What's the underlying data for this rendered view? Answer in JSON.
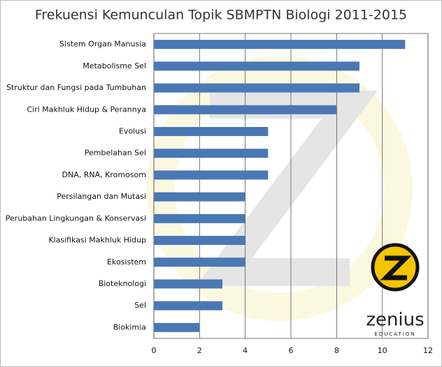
{
  "chart_data": {
    "type": "bar",
    "orientation": "horizontal",
    "title": "Frekuensi Kemunculan Topik SBMPTN Biologi 2011-2015",
    "categories": [
      "Sistem Organ Manusia",
      "Metabolisme Sel",
      "Struktur dan Fungsi pada Tumbuhan",
      "Ciri Makhluk Hidup & Perannya",
      "Evolusi",
      "Pembelahan Sel",
      "DNA, RNA, Kromosom",
      "Persilangan dan Mutasi",
      "Perubahan Lingkungan & Konservasi",
      "Klasifikasi Makhluk Hidup",
      "Ekosistem",
      "Bioteknologi",
      "Sel",
      "Biokimia"
    ],
    "values": [
      11,
      9,
      9,
      8,
      5,
      5,
      5,
      4,
      4,
      4,
      4,
      3,
      3,
      2
    ],
    "color": "#4a78b5",
    "xlim": [
      0,
      12
    ],
    "xticks": [
      0,
      2,
      4,
      6,
      8,
      10,
      12
    ],
    "grid": true
  },
  "logo": {
    "text": "zenius",
    "subtext": "EDUCATION"
  }
}
